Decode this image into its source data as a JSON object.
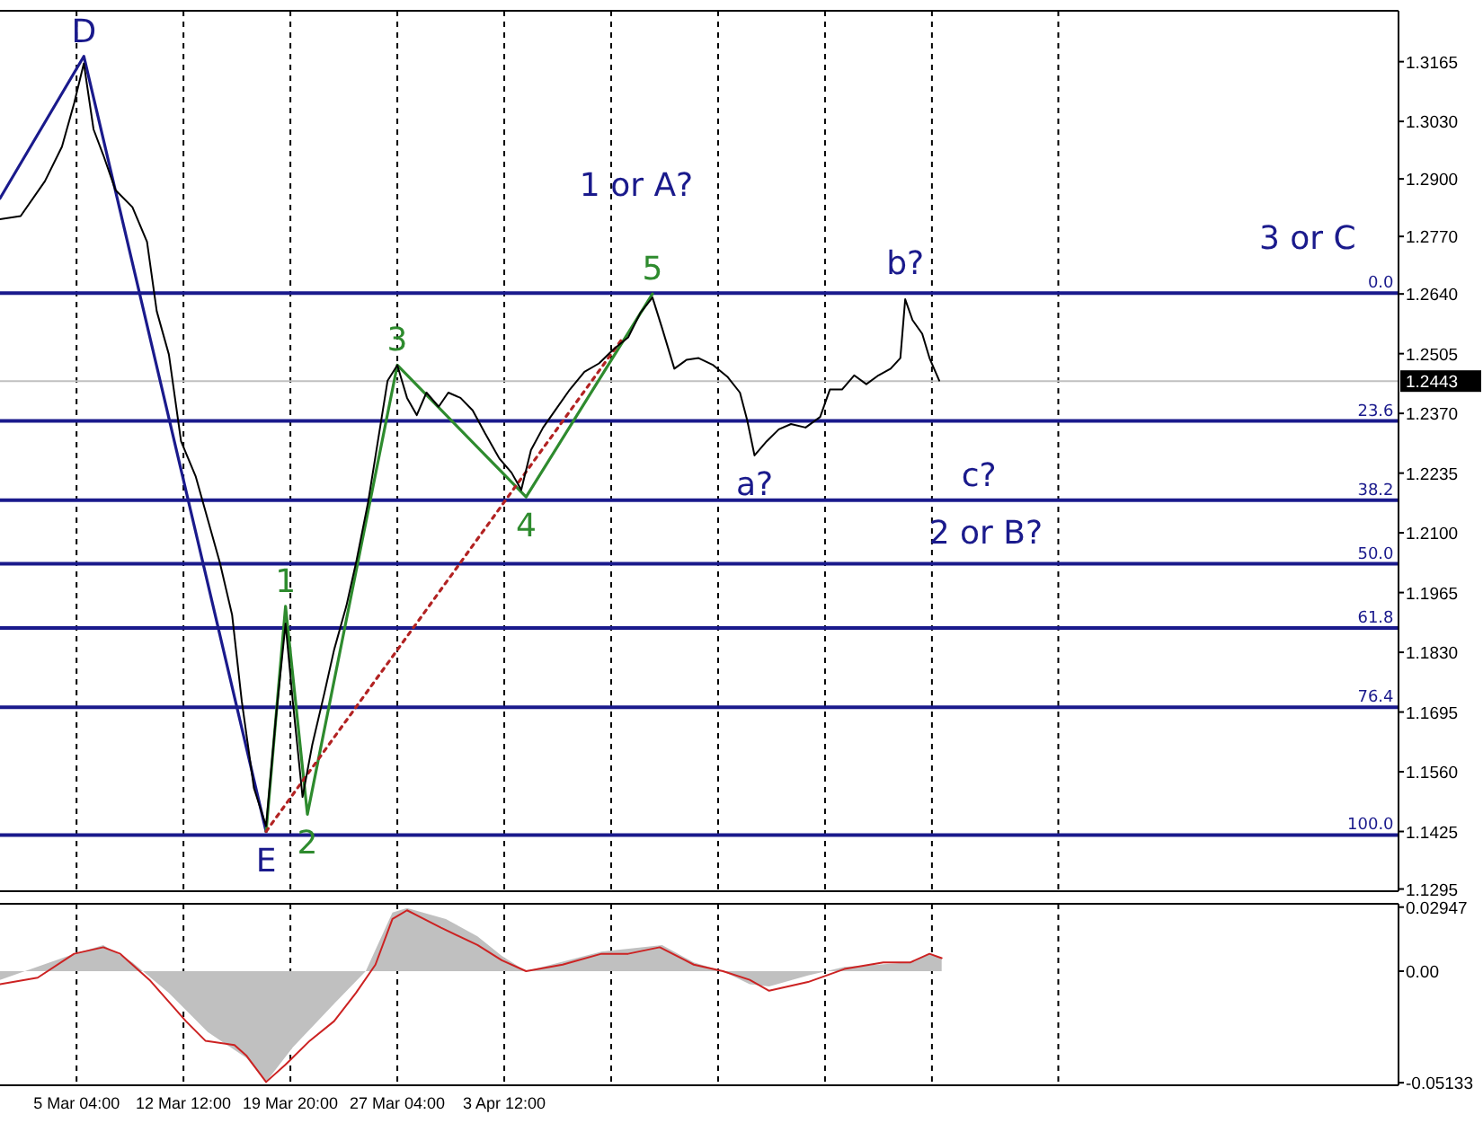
{
  "chart_data": [
    {
      "type": "line",
      "grid": "x",
      "tick_labels": "y",
      "xlim": [
        "--02-27T22:00",
        "--06-03T20:00"
      ],
      "ylim": [
        1.129,
        1.328
      ],
      "xticks": [
        {
          "value": "--03-05T04:00",
          "label": null
        },
        {
          "value": "--03-12T12:00",
          "label": null
        },
        {
          "value": "--03-19T20:00",
          "label": null
        },
        {
          "value": "--03-27T04:00",
          "label": null
        },
        {
          "value": "--04-03T12:00",
          "label": null
        },
        {
          "value": "--04-10T20:00",
          "label": null
        },
        {
          "value": "--04-18T04:00",
          "label": null
        },
        {
          "value": "--04-25T12:00",
          "label": null
        },
        {
          "value": "--05-02T20:00",
          "label": null
        },
        {
          "value": "--05-11T12:00",
          "label": null
        }
      ],
      "yticks": [
        {
          "value": 1.3165,
          "label": "1.3165"
        },
        {
          "value": 1.303,
          "label": "1.3030"
        },
        {
          "value": 1.29,
          "label": "1.2900"
        },
        {
          "value": 1.277,
          "label": "1.2770"
        },
        {
          "value": 1.264,
          "label": "1.2640"
        },
        {
          "value": 1.2505,
          "label": "1.2505"
        },
        {
          "value": 1.237,
          "label": "1.2370"
        },
        {
          "value": 1.2235,
          "label": "1.2235"
        },
        {
          "value": 1.21,
          "label": "1.2100"
        },
        {
          "value": 1.1965,
          "label": "1.1965"
        },
        {
          "value": 1.183,
          "label": "1.1830"
        },
        {
          "value": 1.1695,
          "label": "1.1695"
        },
        {
          "value": 1.156,
          "label": "1.1560"
        },
        {
          "value": 1.1425,
          "label": "1.1425"
        },
        {
          "value": 1.1295,
          "label": "1.1295"
        }
      ],
      "ref_lines": [
        {
          "axis": "y",
          "value": 1.2443,
          "label": "1.2443",
          "color": "#c0c0c0"
        },
        {
          "axis": "y",
          "value": 1.2642,
          "color": "#1a1a8c"
        },
        {
          "axis": "y",
          "value": 1.2353,
          "color": "#1a1a8c"
        },
        {
          "axis": "y",
          "value": 1.2174,
          "color": "#1a1a8c"
        },
        {
          "axis": "y",
          "value": 1.203,
          "color": "#1a1a8c"
        },
        {
          "axis": "y",
          "value": 1.1885,
          "color": "#1a1a8c"
        },
        {
          "axis": "y",
          "value": 1.1706,
          "color": "#1a1a8c"
        },
        {
          "axis": "y",
          "value": 1.1417,
          "color": "#1a1a8c"
        }
      ],
      "series": [
        {
          "color": "#000000",
          "x": [
            "--02-27T22:00",
            "--03-01T08:00",
            "--03-03T00:00",
            "--03-04T04:00",
            "--03-05T00:00",
            "--03-05T16:00",
            "--03-06T08:00",
            "--03-07T00:00",
            "--03-07T20:00",
            "--03-09T00:00",
            "--03-10T00:00",
            "--03-10T16:00",
            "--03-11T12:00",
            "--03-12T08:00",
            "--03-13T08:00",
            "--03-14T04:00",
            "--03-15T00:00",
            "--03-15T20:00",
            "--03-16T12:00",
            "--03-17T08:00",
            "--03-18T04:00",
            "--03-18T20:00",
            "--03-19T12:00",
            "--03-20T00:00",
            "--03-20T16:00",
            "--03-21T08:00",
            "--03-22T04:00",
            "--03-22T20:00",
            "--03-23T16:00",
            "--03-24T08:00",
            "--03-25T04:00",
            "--03-25T20:00",
            "--03-26T12:00",
            "--03-27T04:00",
            "--03-27T20:00",
            "--03-28T12:00",
            "--03-29T04:00",
            "--03-30T00:00",
            "--03-30T16:00",
            "--03-31T12:00",
            "--04-01T08:00",
            "--04-02T04:00",
            "--04-03T04:00",
            "--04-04T00:00",
            "--04-04T16:00",
            "--04-05T08:00",
            "--04-06T04:00",
            "--04-07T00:00",
            "--04-08T00:00",
            "--04-09T00:00",
            "--04-10T00:00",
            "--04-11T00:00",
            "--04-12T00:00",
            "--04-12T20:00",
            "--04-13T16:00",
            "--04-14T08:00",
            "--04-15T04:00",
            "--04-16T00:00",
            "--04-16T20:00",
            "--04-17T20:00",
            "--04-18T20:00",
            "--04-19T16:00",
            "--04-20T04:00",
            "--04-20T16:00",
            "--04-21T12:00",
            "--04-22T08:00",
            "--04-23T04:00",
            "--04-24T04:00",
            "--04-25T04:00",
            "--04-25T20:00",
            "--04-26T16:00",
            "--04-27T12:00",
            "--04-28T08:00",
            "--04-29T04:00",
            "--04-30T00:00",
            "--04-30T16:00",
            "--05-01T00:00",
            "--05-01T12:00",
            "--05-02T04:00",
            "--05-02T16:00",
            "--05-03T08:00"
          ],
          "values": [
            1.2809,
            1.2816,
            1.2895,
            1.2973,
            1.3071,
            1.3161,
            1.3012,
            1.2954,
            1.2875,
            1.2836,
            1.2758,
            1.2601,
            1.2503,
            1.2307,
            1.2228,
            1.213,
            1.2032,
            1.1915,
            1.1719,
            1.1523,
            1.1437,
            1.168,
            1.1895,
            1.1719,
            1.1503,
            1.1621,
            1.1738,
            1.1836,
            1.1934,
            1.2032,
            1.217,
            1.2307,
            1.2444,
            1.2479,
            1.2405,
            1.2366,
            1.2417,
            1.2385,
            1.2417,
            1.2405,
            1.2377,
            1.2326,
            1.2268,
            1.2236,
            1.2197,
            1.2287,
            1.2338,
            1.2377,
            1.2424,
            1.2464,
            1.2483,
            1.2515,
            1.2542,
            1.2597,
            1.2632,
            1.2562,
            1.2471,
            1.2491,
            1.2495,
            1.2479,
            1.2452,
            1.2417,
            1.2354,
            1.2275,
            1.2307,
            1.2334,
            1.2346,
            1.2338,
            1.2362,
            1.2424,
            1.2424,
            1.2456,
            1.2436,
            1.2456,
            1.2471,
            1.2495,
            1.2628,
            1.2581,
            1.255,
            1.2495,
            1.2444
          ]
        },
        {
          "color": "#1a1a8c",
          "x": [
            "--02-27T22:00",
            "--03-05T16:00",
            "--03-18T04:00"
          ],
          "values": [
            1.2856,
            1.3177,
            1.1425
          ]
        },
        {
          "color": "#2e8b2e",
          "x": [
            "--03-18T04:00",
            "--03-19T12:00",
            "--03-21T00:00",
            "--03-27T04:00",
            "--04-05T00:00",
            "--04-13T16:00"
          ],
          "values": [
            1.1425,
            1.1934,
            1.1464,
            1.2479,
            1.2181,
            1.264
          ]
        },
        {
          "color": "#b22222",
          "line_style": "dotted",
          "x": [
            "--03-18T04:00",
            "--04-11T16:00"
          ],
          "values": [
            1.1425,
            1.2542
          ]
        }
      ],
      "annotations": [
        {
          "text": "0.0",
          "x": "--06-03T12:00",
          "y": 1.2642
        },
        {
          "text": "23.6",
          "x": "--06-03T12:00",
          "y": 1.2353
        },
        {
          "text": "38.2",
          "x": "--06-03T12:00",
          "y": 1.2174
        },
        {
          "text": "50.0",
          "x": "--06-03T12:00",
          "y": 1.203
        },
        {
          "text": "61.8",
          "x": "--06-03T12:00",
          "y": 1.1885
        },
        {
          "text": "76.4",
          "x": "--06-03T12:00",
          "y": 1.1706
        },
        {
          "text": "100.0",
          "x": "--06-03T12:00",
          "y": 1.1417
        },
        {
          "text": "D",
          "x": "--03-05T16:00",
          "y": 1.3177
        },
        {
          "text": "E",
          "x": "--03-18T04:00",
          "y": 1.1425
        },
        {
          "text": "1",
          "x": "--03-19T12:00",
          "y": 1.1934
        },
        {
          "text": "2",
          "x": "--03-21T00:00",
          "y": 1.1464
        },
        {
          "text": "3",
          "x": "--03-27T04:00",
          "y": 1.2479
        },
        {
          "text": "4",
          "x": "--04-05T00:00",
          "y": 1.2181
        },
        {
          "text": "5",
          "x": "--04-13T16:00",
          "y": 1.264
        },
        {
          "text": "a?",
          "x": "--04-20T16:00",
          "y": 1.2275
        },
        {
          "text": "b?",
          "x": "--05-01T00:00",
          "y": 1.2628
        },
        "1 or A?",
        "2 or B?",
        "3 or C",
        "c?"
      ]
    },
    {
      "type": "line",
      "grid": "x",
      "xlim": [
        "--02-27T22:00",
        "--06-03T20:00"
      ],
      "ylim": [
        -0.0525,
        0.031
      ],
      "xticks": [
        {
          "value": "--03-05T04:00",
          "label": "5 Mar 04:00"
        },
        {
          "value": "--03-12T12:00",
          "label": "12 Mar 12:00"
        },
        {
          "value": "--03-19T20:00",
          "label": "19 Mar 20:00"
        },
        {
          "value": "--03-27T04:00",
          "label": "27 Mar 04:00"
        },
        {
          "value": "--04-03T12:00",
          "label": "3 Apr 12:00"
        },
        {
          "value": "--04-10T20:00",
          "label": null
        },
        {
          "value": "--04-18T04:00",
          "label": null
        },
        {
          "value": "--04-25T12:00",
          "label": null
        },
        {
          "value": "--05-02T20:00",
          "label": null
        },
        {
          "value": "--05-11T12:00",
          "label": null
        }
      ],
      "yticks": [
        {
          "value": 0.02947,
          "label": "0.02947"
        },
        {
          "value": 0,
          "label": "0.00"
        },
        {
          "value": -0.05133,
          "label": "-0.05133"
        }
      ],
      "series": [
        {
          "type": "area",
          "color": "#c0c0c0",
          "x": [
            "--02-27T22:00",
            "--03-05T00:00",
            "--03-07T00:00",
            "--03-09T00:00",
            "--03-11T12:00",
            "--03-14T04:00",
            "--03-16T20:00",
            "--03-18T04:00",
            "--03-20T00:00",
            "--03-22T20:00",
            "--03-25T00:00",
            "--03-26T20:00",
            "--03-27T20:00",
            "--03-30T12:00",
            "--04-01T16:00",
            "--04-03T08:00",
            "--04-05T00:00",
            "--04-10T04:00",
            "--04-14T08:00",
            "--04-16T12:00",
            "--04-18T12:00",
            "--04-20T08:00",
            "--04-21T16:00",
            "--04-24T08:00",
            "--04-26T20:00",
            "--05-01T08:00",
            "--05-02T16:00",
            "--05-03T12:00"
          ],
          "values": [
            -0.004,
            0.008,
            0.012,
            0.004,
            -0.01,
            -0.028,
            -0.04,
            -0.051,
            -0.035,
            -0.015,
            0.0,
            0.027,
            0.029,
            0.024,
            0.016,
            0.007,
            0.0,
            0.009,
            0.012,
            0.004,
            0.0,
            -0.006,
            -0.007,
            -0.002,
            0.002,
            0.004,
            0.008,
            0.006
          ]
        },
        {
          "color": "#cc2222",
          "x": [
            "--02-27T22:00",
            "--03-02T12:00",
            "--03-05T00:00",
            "--03-07T00:00",
            "--03-08T04:00",
            "--03-10T04:00",
            "--03-12T16:00",
            "--03-14T00:00",
            "--03-16T00:00",
            "--03-16T20:00",
            "--03-18T04:00",
            "--03-19T12:00",
            "--03-21T04:00",
            "--03-22T20:00",
            "--03-24T08:00",
            "--03-25T16:00",
            "--03-26T20:00",
            "--03-27T20:00",
            "--03-30T04:00",
            "--04-01T16:00",
            "--04-03T08:00",
            "--04-05T00:00",
            "--04-07T12:00",
            "--04-10T04:00",
            "--04-12T00:00",
            "--04-14T04:00",
            "--04-16T12:00",
            "--04-18T12:00",
            "--04-20T08:00",
            "--04-21T16:00",
            "--04-24T08:00",
            "--04-26T20:00",
            "--04-29T12:00",
            "--05-01T08:00",
            "--05-02T16:00",
            "--05-03T12:00"
          ],
          "values": [
            -0.006,
            -0.003,
            0.008,
            0.011,
            0.008,
            -0.004,
            -0.023,
            -0.032,
            -0.034,
            -0.039,
            -0.051,
            -0.043,
            -0.032,
            -0.023,
            -0.01,
            0.003,
            0.024,
            0.028,
            0.02,
            0.012,
            0.005,
            0.0,
            0.003,
            0.008,
            0.008,
            0.011,
            0.003,
            0.0,
            -0.004,
            -0.009,
            -0.005,
            0.001,
            0.004,
            0.004,
            0.008,
            0.006
          ]
        }
      ]
    }
  ]
}
